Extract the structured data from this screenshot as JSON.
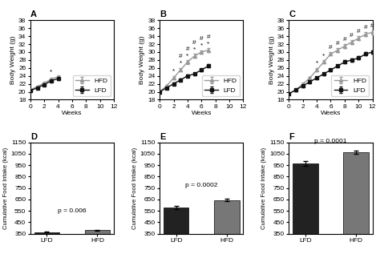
{
  "chart_data": [
    {
      "type": "line",
      "title": "A",
      "x_label": "Weeks",
      "y_label": "Body Weight (g)",
      "x": [
        0,
        1,
        2,
        3,
        4
      ],
      "series": [
        {
          "name": "HFD",
          "color": "#999999",
          "marker": "triangle",
          "values": [
            20.5,
            21.3,
            22.2,
            23.2,
            23.8
          ],
          "errors": [
            0.25,
            0.25,
            0.25,
            0.3,
            0.3
          ]
        },
        {
          "name": "LFD",
          "color": "#111111",
          "marker": "square",
          "values": [
            20.3,
            21.0,
            21.8,
            22.8,
            23.3
          ],
          "errors": [
            0.25,
            0.25,
            0.25,
            0.3,
            0.3
          ]
        }
      ],
      "annotations": [
        {
          "x": 3,
          "y": 24.2,
          "text": "*"
        }
      ],
      "xlim": [
        0,
        12
      ],
      "ylim": [
        18,
        38
      ],
      "xticks": [
        0,
        2,
        4,
        6,
        8,
        10,
        12
      ],
      "yticks": [
        18,
        20,
        22,
        24,
        26,
        28,
        30,
        32,
        34,
        36,
        38
      ],
      "legend": "lower right"
    },
    {
      "type": "line",
      "title": "B",
      "x_label": "Weeks",
      "y_label": "Body Weight (g)",
      "x": [
        0,
        1,
        2,
        3,
        4,
        5,
        6,
        7
      ],
      "series": [
        {
          "name": "HFD",
          "color": "#999999",
          "marker": "triangle",
          "values": [
            20.0,
            21.5,
            23.5,
            25.5,
            27.5,
            29.0,
            30.0,
            30.5
          ],
          "errors": [
            0.3,
            0.3,
            0.35,
            0.4,
            0.5,
            0.5,
            0.5,
            0.5
          ]
        },
        {
          "name": "LFD",
          "color": "#111111",
          "marker": "square",
          "values": [
            20.0,
            21.0,
            22.0,
            23.0,
            24.0,
            24.5,
            25.5,
            26.5
          ],
          "errors": [
            0.3,
            0.3,
            0.3,
            0.3,
            0.3,
            0.3,
            0.35,
            0.4
          ]
        }
      ],
      "annotations": [
        {
          "x": 2,
          "y": 24.4,
          "text": "*"
        },
        {
          "x": 3,
          "y": 26.4,
          "text": "*"
        },
        {
          "x": 4,
          "y": 28.4,
          "text": "*"
        },
        {
          "x": 5,
          "y": 29.9,
          "text": "*"
        },
        {
          "x": 6,
          "y": 30.9,
          "text": "*"
        },
        {
          "x": 7,
          "y": 31.4,
          "text": "*"
        },
        {
          "x": 3,
          "y": 26.4,
          "text": "#"
        },
        {
          "x": 4,
          "y": 28.4,
          "text": "#"
        },
        {
          "x": 5,
          "y": 29.9,
          "text": "#"
        },
        {
          "x": 6,
          "y": 30.9,
          "text": "#"
        },
        {
          "x": 7,
          "y": 31.4,
          "text": "#"
        }
      ],
      "xlim": [
        0,
        12
      ],
      "ylim": [
        18,
        38
      ],
      "xticks": [
        0,
        2,
        4,
        6,
        8,
        10,
        12
      ],
      "yticks": [
        18,
        20,
        22,
        24,
        26,
        28,
        30,
        32,
        34,
        36,
        38
      ],
      "legend": "lower right"
    },
    {
      "type": "line",
      "title": "C",
      "x_label": "Weeks",
      "y_label": "Body Weight (g)",
      "x": [
        0,
        1,
        2,
        3,
        4,
        5,
        6,
        7,
        8,
        9,
        10,
        11,
        12
      ],
      "series": [
        {
          "name": "HFD",
          "color": "#999999",
          "marker": "triangle",
          "values": [
            19.5,
            20.5,
            22.0,
            23.5,
            25.5,
            27.5,
            29.5,
            30.5,
            31.5,
            32.5,
            33.5,
            34.5,
            35.0
          ],
          "errors": [
            0.3,
            0.3,
            0.3,
            0.3,
            0.4,
            0.4,
            0.4,
            0.5,
            0.5,
            0.5,
            0.5,
            0.5,
            0.5
          ]
        },
        {
          "name": "LFD",
          "color": "#111111",
          "marker": "square",
          "values": [
            19.5,
            20.5,
            21.5,
            22.5,
            23.5,
            24.5,
            25.5,
            26.5,
            27.5,
            28.0,
            28.5,
            29.5,
            30.0
          ],
          "errors": [
            0.3,
            0.3,
            0.3,
            0.3,
            0.3,
            0.3,
            0.3,
            0.3,
            0.4,
            0.4,
            0.4,
            0.4,
            0.4
          ]
        }
      ],
      "annotations": [
        {
          "x": 4,
          "y": 26.4,
          "text": "*"
        },
        {
          "x": 5,
          "y": 28.4,
          "text": "*"
        },
        {
          "x": 6,
          "y": 30.4,
          "text": "#"
        },
        {
          "x": 7,
          "y": 31.4,
          "text": "#"
        },
        {
          "x": 8,
          "y": 32.4,
          "text": "#"
        },
        {
          "x": 9,
          "y": 33.4,
          "text": "#"
        },
        {
          "x": 10,
          "y": 34.4,
          "text": "#"
        },
        {
          "x": 11,
          "y": 35.4,
          "text": "#"
        },
        {
          "x": 12,
          "y": 35.9,
          "text": "#"
        }
      ],
      "xlim": [
        0,
        12
      ],
      "ylim": [
        18,
        38
      ],
      "xticks": [
        0,
        2,
        4,
        6,
        8,
        10,
        12
      ],
      "yticks": [
        18,
        20,
        22,
        24,
        26,
        28,
        30,
        32,
        34,
        36,
        38
      ],
      "legend": "lower right"
    },
    {
      "type": "bar",
      "title": "D",
      "y_label": "Cumulative Food Intake (kcal)",
      "categories": [
        "LFD",
        "HFD"
      ],
      "values": [
        365,
        380
      ],
      "errors": [
        4,
        6
      ],
      "colors": [
        "#222222",
        "#777777"
      ],
      "annotations": [
        {
          "x": 0.5,
          "y": 520,
          "text": "p = 0.006"
        }
      ],
      "ylim": [
        350,
        1150
      ],
      "yticks": [
        350,
        450,
        550,
        650,
        750,
        850,
        950,
        1050,
        1150
      ]
    },
    {
      "type": "bar",
      "title": "E",
      "y_label": "Cumulative Food Intake (kcal)",
      "categories": [
        "LFD",
        "HFD"
      ],
      "values": [
        580,
        645
      ],
      "errors": [
        13,
        10
      ],
      "colors": [
        "#222222",
        "#777777"
      ],
      "annotations": [
        {
          "x": 0.5,
          "y": 750,
          "text": "p = 0.0002"
        }
      ],
      "ylim": [
        350,
        1150
      ],
      "yticks": [
        350,
        450,
        550,
        650,
        750,
        850,
        950,
        1050,
        1150
      ]
    },
    {
      "type": "bar",
      "title": "F",
      "y_label": "Cumulative Food Intake (kcal)",
      "categories": [
        "LFD",
        "HFD"
      ],
      "values": [
        965,
        1065
      ],
      "errors": [
        18,
        12
      ],
      "colors": [
        "#222222",
        "#777777"
      ],
      "annotations": [
        {
          "x": 0.5,
          "y": 1135,
          "text": "p = 0.0001"
        }
      ],
      "ylim": [
        350,
        1150
      ],
      "yticks": [
        350,
        450,
        550,
        650,
        750,
        850,
        950,
        1050,
        1150
      ]
    }
  ]
}
